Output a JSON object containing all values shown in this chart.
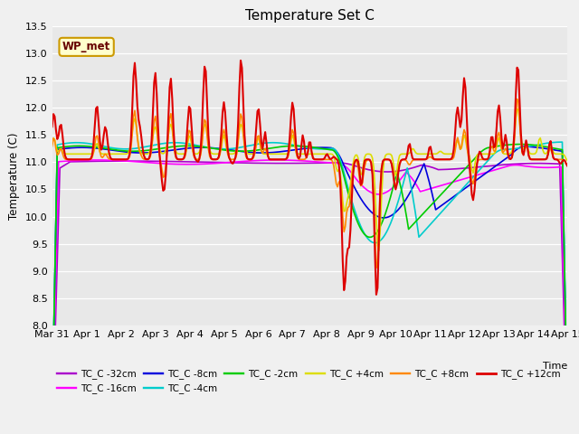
{
  "title": "Temperature Set C",
  "xlabel": "Time",
  "ylabel": "Temperature (C)",
  "ylim": [
    8.0,
    13.5
  ],
  "fig_facecolor": "#f0f0f0",
  "axes_facecolor": "#e8e8e8",
  "wp_met_label": "WP_met",
  "series_order": [
    "TC_C -32cm",
    "TC_C -16cm",
    "TC_C -8cm",
    "TC_C -4cm",
    "TC_C -2cm",
    "TC_C +4cm",
    "TC_C +8cm",
    "TC_C +12cm"
  ],
  "series": {
    "TC_C -32cm": {
      "color": "#aa00cc",
      "lw": 1.2
    },
    "TC_C -16cm": {
      "color": "#ff00ff",
      "lw": 1.2
    },
    "TC_C -8cm": {
      "color": "#0000dd",
      "lw": 1.2
    },
    "TC_C -4cm": {
      "color": "#00cccc",
      "lw": 1.2
    },
    "TC_C -2cm": {
      "color": "#00cc00",
      "lw": 1.2
    },
    "TC_C +4cm": {
      "color": "#dddd00",
      "lw": 1.2
    },
    "TC_C +8cm": {
      "color": "#ff8800",
      "lw": 1.2
    },
    "TC_C +12cm": {
      "color": "#dd0000",
      "lw": 1.5
    }
  },
  "xtick_labels": [
    "Mar 31",
    "Apr 1",
    "Apr 2",
    "Apr 3",
    "Apr 4",
    "Apr 5",
    "Apr 6",
    "Apr 7",
    "Apr 8",
    "Apr 9",
    "Apr 10",
    "Apr 11",
    "Apr 12",
    "Apr 13",
    "Apr 14",
    "Apr 15"
  ],
  "legend_ncol": 6,
  "n_points": 400
}
